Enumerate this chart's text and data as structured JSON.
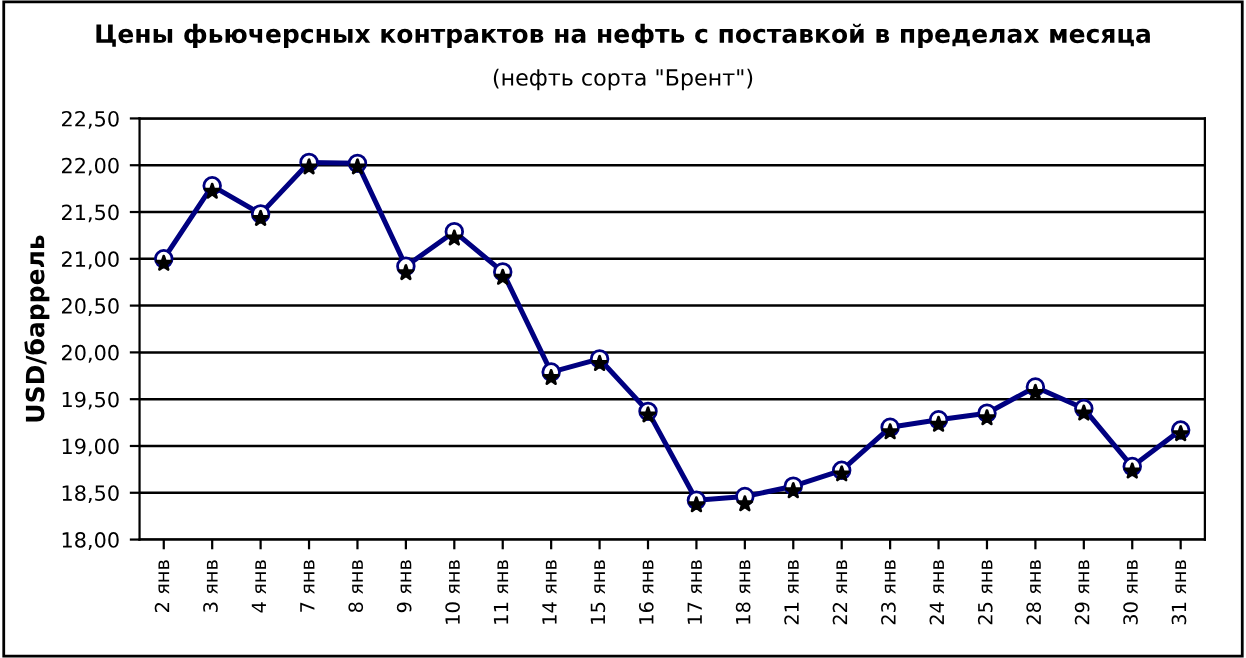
{
  "chart_data": {
    "type": "line",
    "title": "Цены фьючерсных контрактов на нефть с поставкой в пределах месяца",
    "subtitle": "(нефть сорта \"Брент\")",
    "ylabel": "USD/баррель",
    "categories": [
      "2 янв",
      "3 янв",
      "4 янв",
      "7 янв",
      "8 янв",
      "9 янв",
      "10 янв",
      "11 янв",
      "14 янв",
      "15 янв",
      "16 янв",
      "17 янв",
      "18 янв",
      "21 янв",
      "22 янв",
      "23 янв",
      "24 янв",
      "25 янв",
      "28 янв",
      "29 янв",
      "30 янв",
      "31 янв"
    ],
    "series": [
      {
        "color": "#000080",
        "marker": "circle",
        "line_style": "solid",
        "values": [
          21.0,
          21.78,
          21.48,
          22.03,
          22.02,
          20.92,
          21.29,
          20.86,
          19.79,
          19.93,
          19.37,
          18.42,
          18.46,
          18.57,
          18.74,
          19.2,
          19.28,
          19.35,
          19.63,
          19.4,
          18.78,
          19.17
        ]
      },
      {
        "type": "scatter",
        "color": "#000000",
        "marker": "star",
        "values": [
          20.95,
          21.72,
          21.43,
          21.98,
          21.98,
          20.85,
          21.22,
          20.8,
          19.73,
          19.88,
          19.33,
          18.37,
          18.38,
          18.52,
          18.7,
          19.15,
          19.23,
          19.3,
          19.57,
          19.35,
          18.73,
          19.13
        ]
      }
    ],
    "ylim": [
      18.0,
      22.5
    ],
    "yticks": [
      {
        "value": 18.0,
        "label": "18,00"
      },
      {
        "value": 18.5,
        "label": "18,50"
      },
      {
        "value": 19.0,
        "label": "19,00"
      },
      {
        "value": 19.5,
        "label": "19,50"
      },
      {
        "value": 20.0,
        "label": "20,00"
      },
      {
        "value": 20.5,
        "label": "20,50"
      },
      {
        "value": 21.0,
        "label": "21,00"
      },
      {
        "value": 21.5,
        "label": "21,50"
      },
      {
        "value": 22.0,
        "label": "22,00"
      },
      {
        "value": 22.5,
        "label": "22,50"
      }
    ],
    "grid": "y",
    "legend": false
  }
}
